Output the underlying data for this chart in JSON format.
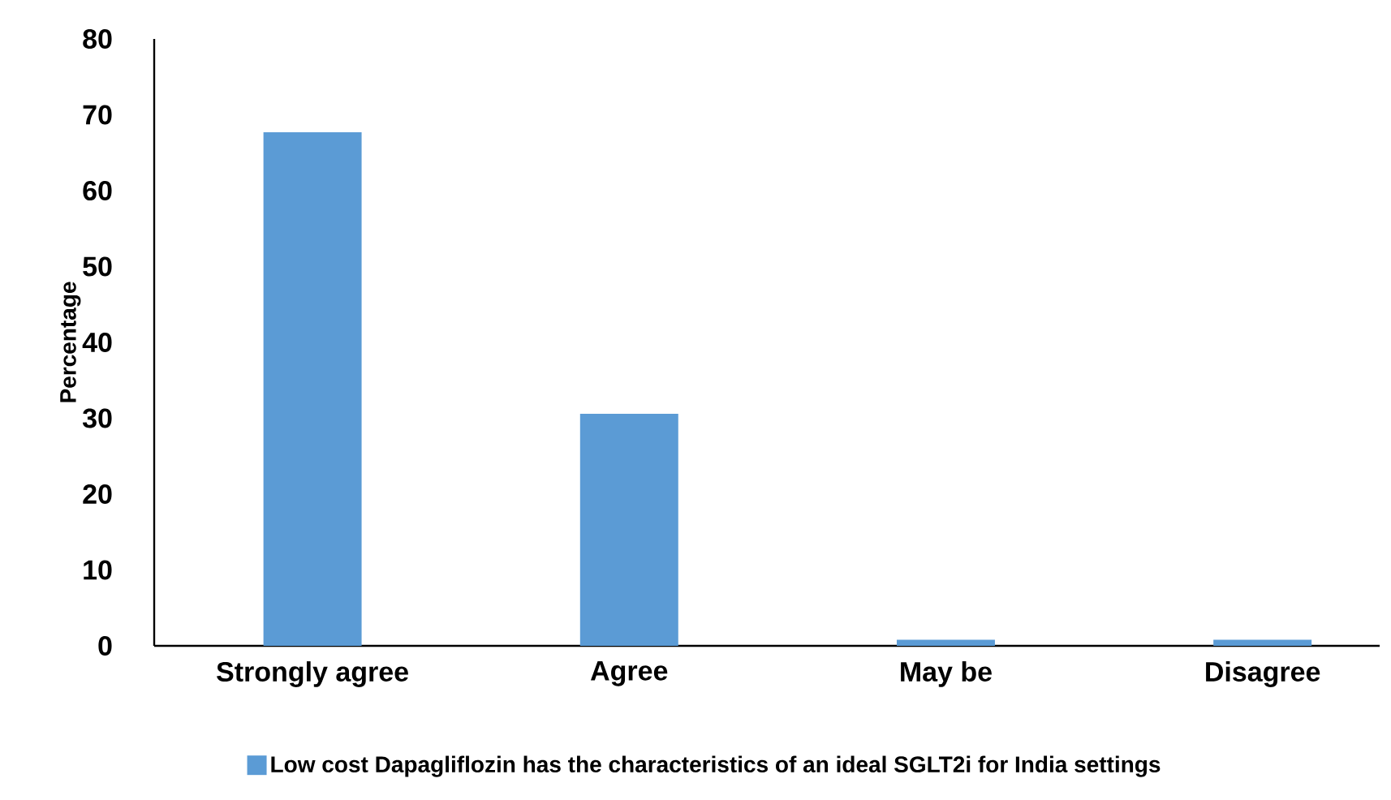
{
  "chart_data": {
    "type": "bar",
    "ylabel": "Percentage",
    "categories": [
      "Strongly agree",
      "Agree",
      "May be",
      "Disagree"
    ],
    "series": [
      {
        "name": "Low cost Dapagliflozin has the characteristics of an ideal SGLT2i for India settings",
        "color": "#5b9bd5",
        "values": [
          67.7,
          30.6,
          0.8,
          0.8
        ]
      }
    ],
    "ylim": [
      0,
      80
    ],
    "yticks": [
      0,
      10,
      20,
      30,
      40,
      50,
      60,
      70,
      80
    ],
    "legend": "bottom"
  }
}
